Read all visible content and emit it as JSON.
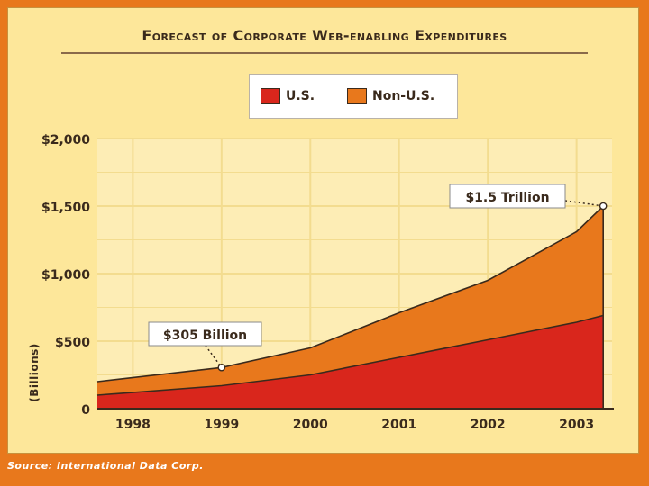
{
  "chart_data": {
    "type": "area",
    "stacked": true,
    "title": "Forecast of Corporate Web-enabling Expenditures",
    "ylabel": "(Billions)",
    "xlabel": "",
    "x": [
      1997.6,
      1999,
      2000,
      2001,
      2002,
      2003,
      2003.3
    ],
    "x_tick_labels": [
      "1998",
      "1999",
      "2000",
      "2001",
      "2002",
      "2003"
    ],
    "x_tick_values": [
      1998,
      1999,
      2000,
      2001,
      2002,
      2003
    ],
    "y_tick_labels": [
      "0",
      "$500",
      "$1,000",
      "$1,500",
      "$2,000"
    ],
    "y_tick_values": [
      0,
      500,
      1000,
      1500,
      2000
    ],
    "ylim": [
      0,
      2000
    ],
    "xlim": [
      1997.6,
      2003.4
    ],
    "series": [
      {
        "name": "U.S.",
        "color": "#d9261c",
        "values": [
          100,
          170,
          250,
          380,
          510,
          640,
          690
        ]
      },
      {
        "name": "Non-U.S.",
        "color": "#e8781c",
        "values": [
          100,
          135,
          200,
          330,
          440,
          670,
          810
        ]
      }
    ],
    "annotations": [
      {
        "text": "$305 Billion",
        "x": 1999,
        "y": 305
      },
      {
        "text": "$1.5 Trillion",
        "x": 2003.3,
        "y": 1500
      }
    ],
    "grid": true,
    "legend_position": "top-center"
  },
  "legend": [
    {
      "label": "U.S.",
      "color": "#d9261c"
    },
    {
      "label": "Non-U.S.",
      "color": "#e8781c"
    }
  ],
  "source": "Source: International Data Corp.",
  "colors": {
    "panel_bg": "#fde79a",
    "plot_bg": "#fdedb5",
    "grid": "#f3dc8f",
    "outline": "#3a2a1c",
    "frame": "#e8781c"
  }
}
